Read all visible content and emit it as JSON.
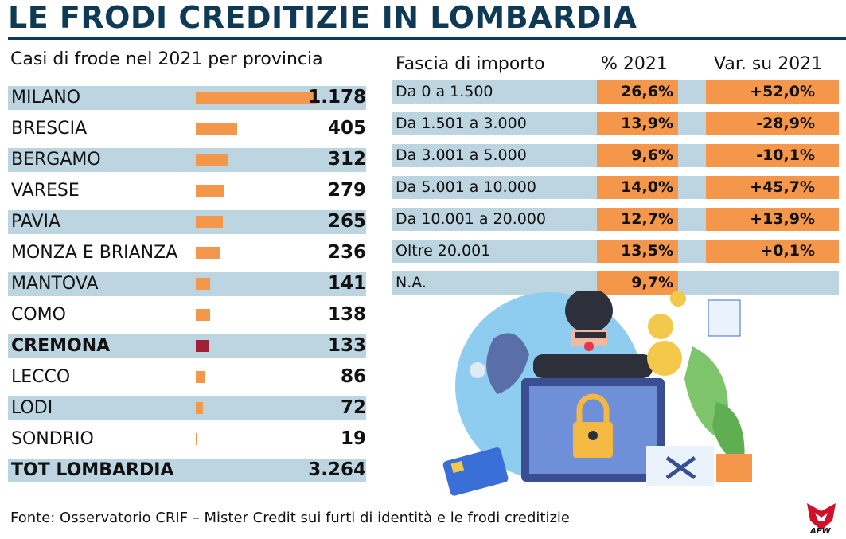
{
  "title": "LE FRODI CREDITIZIE IN LOMBARDIA",
  "chart_data": [
    {
      "type": "bar",
      "title": "Casi di frode nel 2021 per provincia",
      "categories": [
        "MILANO",
        "BRESCIA",
        "BERGAMO",
        "VARESE",
        "PAVIA",
        "MONZA E BRIANZA",
        "MANTOVA",
        "COMO",
        "CREMONA",
        "LECCO",
        "LODI",
        "SONDRIO"
      ],
      "values": [
        1178,
        405,
        312,
        279,
        265,
        236,
        141,
        138,
        133,
        86,
        72,
        19
      ],
      "labels": [
        "1.178",
        "405",
        "312",
        "279",
        "265",
        "236",
        "141",
        "138",
        "133",
        "86",
        "72",
        "19"
      ],
      "highlight": "CREMONA",
      "colors": {
        "bar": "#f4974b",
        "highlight": "#a0203a",
        "row_shade": "#bcd5e0"
      },
      "total": {
        "label": "TOT LOMBARDIA",
        "value": "3.264"
      }
    },
    {
      "type": "table",
      "columns": [
        "Fascia di importo",
        "% 2021",
        "Var. su 2021"
      ],
      "rows": [
        [
          "Da 0 a 1.500",
          "26,6%",
          "+52,0%"
        ],
        [
          "Da 1.501 a 3.000",
          "13,9%",
          "-28,9%"
        ],
        [
          "Da 3.001 a 5.000",
          "9,6%",
          "-10,1%"
        ],
        [
          "Da 5.001 a 10.000",
          "14,0%",
          "+45,7%"
        ],
        [
          "Da 10.001 a 20.000",
          "12,7%",
          "+13,9%"
        ],
        [
          "Oltre 20.001",
          "13,5%",
          "+0,1%"
        ],
        [
          "N.A.",
          "9,7%",
          ""
        ]
      ]
    }
  ],
  "footer": "Fonte: Osservatorio CRIF – Mister Credit sui furti di identità e le frodi creditizie",
  "logo_text": "AFW"
}
